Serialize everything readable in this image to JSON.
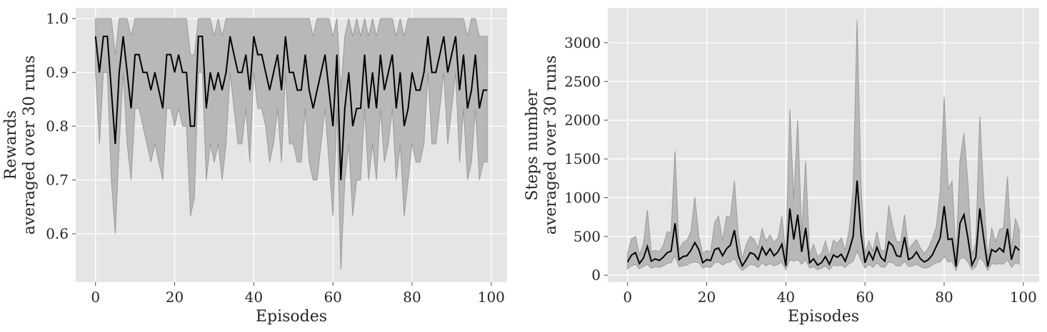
{
  "chart_data": [
    {
      "type": "line",
      "xlabel": "Episodes",
      "ylabel_lines": [
        "Rewards",
        "averaged over 30 runs"
      ],
      "xlim": [
        -5,
        104
      ],
      "ylim": [
        0.51,
        1.02
      ],
      "xticks": [
        0,
        20,
        40,
        60,
        80,
        100
      ],
      "yticks": [
        0.6,
        0.7,
        0.8,
        0.9,
        1.0
      ],
      "xtick_labels": [
        "0",
        "20",
        "40",
        "60",
        "80",
        "100"
      ],
      "ytick_labels": [
        "0.6",
        "0.7",
        "0.8",
        "0.9",
        "1.0"
      ],
      "grid": true,
      "background": "#e5e5e5",
      "line_color": "#000000",
      "band_color": "#b8b8b8",
      "band_edge_color": "#9a9a9a",
      "x": [
        0,
        1,
        2,
        3,
        4,
        5,
        6,
        7,
        8,
        9,
        10,
        11,
        12,
        13,
        14,
        15,
        16,
        17,
        18,
        19,
        20,
        21,
        22,
        23,
        24,
        25,
        26,
        27,
        28,
        29,
        30,
        31,
        32,
        33,
        34,
        35,
        36,
        37,
        38,
        39,
        40,
        41,
        42,
        43,
        44,
        45,
        46,
        47,
        48,
        49,
        50,
        51,
        52,
        53,
        54,
        55,
        56,
        57,
        58,
        59,
        60,
        61,
        62,
        63,
        64,
        65,
        66,
        67,
        68,
        69,
        70,
        71,
        72,
        73,
        74,
        75,
        76,
        77,
        78,
        79,
        80,
        81,
        82,
        83,
        84,
        85,
        86,
        87,
        88,
        89,
        90,
        91,
        92,
        93,
        94,
        95,
        96,
        97,
        98,
        99
      ],
      "mean": [
        0.967,
        0.9,
        0.967,
        0.967,
        0.867,
        0.767,
        0.9,
        0.967,
        0.9,
        0.833,
        0.933,
        0.933,
        0.9,
        0.9,
        0.867,
        0.9,
        0.867,
        0.833,
        0.933,
        0.933,
        0.9,
        0.933,
        0.9,
        0.9,
        0.8,
        0.8,
        0.967,
        0.967,
        0.833,
        0.9,
        0.867,
        0.9,
        0.867,
        0.9,
        0.967,
        0.933,
        0.9,
        0.9,
        0.933,
        0.867,
        0.967,
        0.933,
        0.933,
        0.9,
        0.867,
        0.9,
        0.933,
        0.867,
        0.967,
        0.9,
        0.9,
        0.867,
        0.867,
        0.933,
        0.867,
        0.833,
        0.867,
        0.9,
        0.933,
        0.867,
        0.8,
        0.933,
        0.7,
        0.833,
        0.9,
        0.8,
        0.833,
        0.833,
        0.933,
        0.833,
        0.9,
        0.833,
        0.933,
        0.867,
        0.9,
        0.933,
        0.833,
        0.9,
        0.8,
        0.833,
        0.9,
        0.867,
        0.867,
        0.9,
        0.967,
        0.9,
        0.9,
        0.933,
        0.967,
        0.9,
        0.933,
        0.967,
        0.867,
        0.933,
        0.833,
        0.867,
        0.933,
        0.833,
        0.867,
        0.867
      ],
      "upper": [
        1.0,
        1.0,
        1.0,
        1.0,
        1.0,
        0.933,
        1.0,
        1.0,
        1.0,
        0.967,
        1.0,
        1.0,
        1.0,
        1.0,
        1.0,
        1.0,
        1.0,
        1.0,
        1.0,
        1.0,
        1.0,
        1.0,
        1.0,
        1.0,
        0.933,
        0.933,
        1.0,
        1.0,
        1.0,
        1.0,
        0.967,
        1.0,
        0.967,
        1.0,
        1.0,
        1.0,
        1.0,
        1.0,
        1.0,
        1.0,
        1.0,
        1.0,
        1.0,
        1.0,
        1.0,
        1.0,
        1.0,
        1.0,
        1.0,
        1.0,
        1.0,
        1.0,
        1.0,
        1.0,
        1.0,
        0.967,
        1.0,
        1.0,
        1.0,
        1.0,
        0.967,
        1.0,
        0.867,
        0.967,
        1.0,
        0.967,
        1.0,
        0.967,
        1.0,
        0.967,
        1.0,
        0.967,
        1.0,
        1.0,
        1.0,
        1.0,
        0.967,
        1.0,
        0.967,
        1.0,
        1.0,
        1.0,
        1.0,
        1.0,
        1.0,
        1.0,
        1.0,
        1.0,
        1.0,
        1.0,
        1.0,
        1.0,
        1.0,
        1.0,
        0.967,
        1.0,
        1.0,
        0.967,
        0.967,
        0.967
      ],
      "lower": [
        0.9,
        0.767,
        0.9,
        0.9,
        0.7,
        0.6,
        0.767,
        0.9,
        0.767,
        0.7,
        0.833,
        0.833,
        0.8,
        0.767,
        0.733,
        0.767,
        0.733,
        0.7,
        0.833,
        0.833,
        0.8,
        0.833,
        0.8,
        0.8,
        0.633,
        0.667,
        0.9,
        0.9,
        0.7,
        0.767,
        0.733,
        0.767,
        0.7,
        0.767,
        0.9,
        0.833,
        0.767,
        0.767,
        0.833,
        0.733,
        0.9,
        0.833,
        0.833,
        0.8,
        0.733,
        0.767,
        0.833,
        0.733,
        0.9,
        0.767,
        0.767,
        0.733,
        0.733,
        0.833,
        0.733,
        0.7,
        0.7,
        0.767,
        0.833,
        0.733,
        0.633,
        0.833,
        0.533,
        0.7,
        0.767,
        0.633,
        0.7,
        0.7,
        0.833,
        0.7,
        0.767,
        0.7,
        0.833,
        0.733,
        0.767,
        0.833,
        0.7,
        0.767,
        0.633,
        0.7,
        0.767,
        0.733,
        0.733,
        0.767,
        0.9,
        0.767,
        0.767,
        0.833,
        0.9,
        0.767,
        0.833,
        0.9,
        0.733,
        0.833,
        0.7,
        0.733,
        0.833,
        0.7,
        0.733,
        0.733
      ]
    },
    {
      "type": "line",
      "xlabel": "Episodes",
      "ylabel_lines": [
        "Steps number",
        "averaged over 30 runs"
      ],
      "xlim": [
        -5,
        104
      ],
      "ylim": [
        -90,
        3450
      ],
      "xticks": [
        0,
        20,
        40,
        60,
        80,
        100
      ],
      "yticks": [
        0,
        500,
        1000,
        1500,
        2000,
        2500,
        3000
      ],
      "xtick_labels": [
        "0",
        "20",
        "40",
        "60",
        "80",
        "100"
      ],
      "ytick_labels": [
        "0",
        "500",
        "1000",
        "1500",
        "2000",
        "2500",
        "3000"
      ],
      "grid": true,
      "background": "#e5e5e5",
      "line_color": "#000000",
      "band_color": "#b8b8b8",
      "band_edge_color": "#9a9a9a",
      "x": [
        0,
        1,
        2,
        3,
        4,
        5,
        6,
        7,
        8,
        9,
        10,
        11,
        12,
        13,
        14,
        15,
        16,
        17,
        18,
        19,
        20,
        21,
        22,
        23,
        24,
        25,
        26,
        27,
        28,
        29,
        30,
        31,
        32,
        33,
        34,
        35,
        36,
        37,
        38,
        39,
        40,
        41,
        42,
        43,
        44,
        45,
        46,
        47,
        48,
        49,
        50,
        51,
        52,
        53,
        54,
        55,
        56,
        57,
        58,
        59,
        60,
        61,
        62,
        63,
        64,
        65,
        66,
        67,
        68,
        69,
        70,
        71,
        72,
        73,
        74,
        75,
        76,
        77,
        78,
        79,
        80,
        81,
        82,
        83,
        84,
        85,
        86,
        87,
        88,
        89,
        90,
        91,
        92,
        93,
        94,
        95,
        96,
        97,
        98,
        99
      ],
      "mean": [
        170,
        260,
        290,
        150,
        220,
        370,
        180,
        210,
        190,
        230,
        290,
        310,
        670,
        200,
        240,
        250,
        320,
        420,
        330,
        160,
        200,
        190,
        330,
        350,
        250,
        340,
        390,
        580,
        250,
        120,
        200,
        290,
        270,
        200,
        360,
        260,
        340,
        250,
        300,
        400,
        120,
        860,
        460,
        780,
        300,
        610,
        160,
        210,
        130,
        160,
        240,
        140,
        260,
        230,
        270,
        180,
        320,
        500,
        1220,
        520,
        160,
        300,
        200,
        360,
        230,
        180,
        430,
        380,
        250,
        240,
        490,
        200,
        230,
        300,
        210,
        170,
        200,
        260,
        370,
        480,
        890,
        460,
        470,
        110,
        670,
        780,
        480,
        130,
        230,
        860,
        470,
        110,
        330,
        300,
        350,
        300,
        600,
        200,
        370,
        320
      ],
      "upper": [
        280,
        470,
        500,
        260,
        400,
        840,
        300,
        320,
        300,
        380,
        560,
        550,
        1600,
        330,
        420,
        450,
        560,
        1010,
        500,
        280,
        320,
        300,
        680,
        760,
        450,
        760,
        750,
        1220,
        500,
        210,
        400,
        500,
        460,
        350,
        600,
        440,
        520,
        420,
        480,
        760,
        260,
        2140,
        980,
        2000,
        530,
        1470,
        270,
        400,
        240,
        280,
        440,
        240,
        450,
        410,
        480,
        320,
        580,
        1120,
        3290,
        1140,
        280,
        440,
        310,
        560,
        320,
        310,
        900,
        630,
        430,
        430,
        780,
        330,
        400,
        460,
        350,
        280,
        350,
        470,
        620,
        1090,
        2300,
        1110,
        1210,
        230,
        1480,
        1830,
        1190,
        260,
        420,
        2050,
        1040,
        210,
        610,
        430,
        590,
        610,
        1270,
        330,
        730,
        590
      ],
      "lower": [
        80,
        120,
        140,
        80,
        110,
        140,
        90,
        110,
        100,
        120,
        150,
        160,
        250,
        110,
        120,
        130,
        160,
        170,
        160,
        90,
        110,
        100,
        160,
        170,
        130,
        160,
        170,
        220,
        120,
        60,
        100,
        140,
        130,
        100,
        160,
        120,
        150,
        120,
        140,
        170,
        70,
        200,
        180,
        200,
        140,
        200,
        90,
        110,
        70,
        90,
        120,
        70,
        130,
        120,
        130,
        100,
        150,
        180,
        310,
        190,
        90,
        140,
        100,
        160,
        110,
        100,
        170,
        160,
        120,
        120,
        180,
        110,
        120,
        140,
        110,
        90,
        100,
        130,
        160,
        170,
        240,
        170,
        180,
        60,
        210,
        230,
        170,
        70,
        110,
        230,
        170,
        60,
        150,
        140,
        150,
        140,
        200,
        100,
        160,
        140
      ]
    }
  ]
}
